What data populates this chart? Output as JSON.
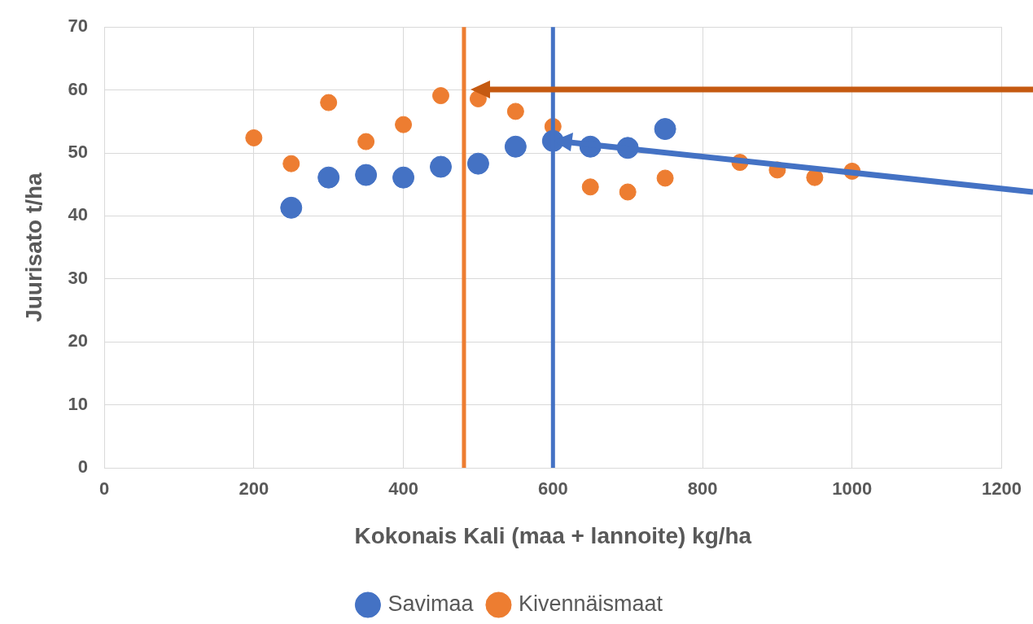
{
  "chart_data": {
    "type": "scatter",
    "xlabel": "Kokonais Kali (maa + lannoite) kg/ha",
    "ylabel": "Juurisato t/ha",
    "xlim": [
      0,
      1200
    ],
    "xticks": [
      0,
      200,
      400,
      600,
      800,
      1000,
      1200
    ],
    "ylim": [
      0,
      70
    ],
    "yticks": [
      0,
      10,
      20,
      30,
      40,
      50,
      60,
      70
    ],
    "grid": true,
    "legend": "bottom",
    "marker": "circle",
    "series": [
      {
        "name": "Savimaa",
        "color": "#4472c4",
        "x": [
          250,
          300,
          350,
          400,
          450,
          500,
          550,
          600,
          650,
          700,
          750
        ],
        "values": [
          41.3,
          46.1,
          46.5,
          46.1,
          47.8,
          48.3,
          51.0,
          51.9,
          51.0,
          50.8,
          53.8
        ]
      },
      {
        "name": "Kivennäismaat",
        "color": "#ed7d31",
        "x": [
          200,
          250,
          300,
          350,
          400,
          450,
          500,
          550,
          600,
          650,
          700,
          750,
          850,
          900,
          950,
          1000
        ],
        "values": [
          52.4,
          48.3,
          58.0,
          51.8,
          54.5,
          59.1,
          58.6,
          56.6,
          54.2,
          44.6,
          43.8,
          46.0,
          48.5,
          47.3,
          46.1,
          47.1
        ]
      }
    ],
    "ref_lines": [
      {
        "axis": "x",
        "value": 481,
        "color": "#ed7d31"
      },
      {
        "axis": "x",
        "value": 600,
        "color": "#4472c4"
      }
    ]
  }
}
